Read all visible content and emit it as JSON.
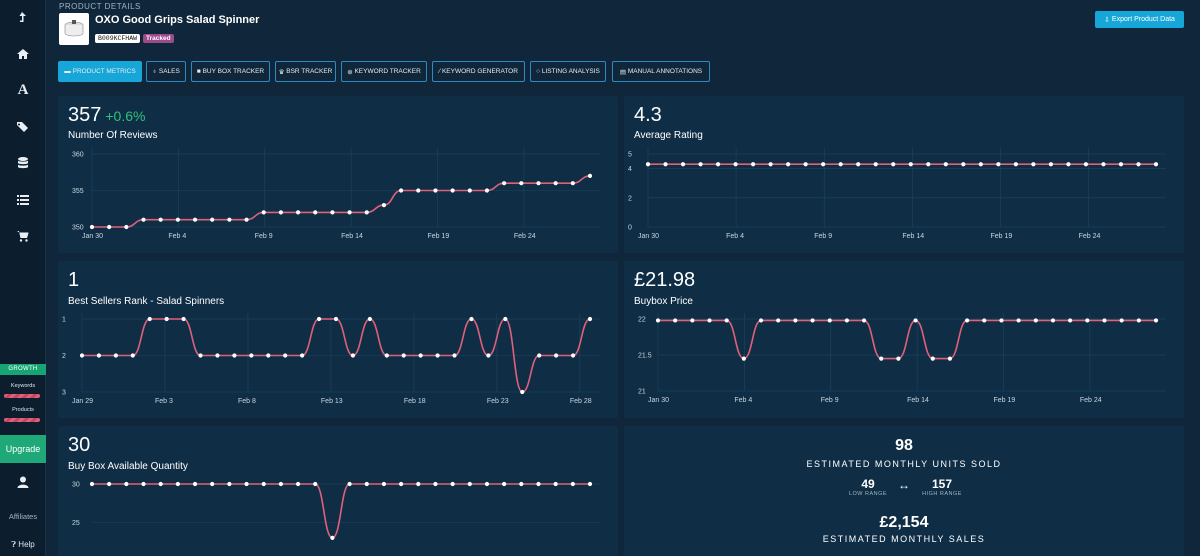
{
  "header": {
    "section_label": "PRODUCT DETAILS",
    "product_title": "OXO Good Grips Salad Spinner",
    "asin": "B009KCFHAW",
    "tracked_badge": "Tracked",
    "export_button": "Export Product Data"
  },
  "tabs": [
    {
      "label": "PRODUCT METRICS",
      "icon": "chart-area-icon",
      "active": true
    },
    {
      "label": "SALES",
      "icon": "money-bag-icon",
      "active": false
    },
    {
      "label": "BUY BOX TRACKER",
      "icon": "truck-icon",
      "active": false
    },
    {
      "label": "BSR TRACKER",
      "icon": "trophy-icon",
      "active": false
    },
    {
      "label": "KEYWORD TRACKER",
      "icon": "binoculars-icon",
      "active": false
    },
    {
      "label": "KEYWORD GENERATOR",
      "icon": "magic-wand-icon",
      "active": false
    },
    {
      "label": "LISTING ANALYSIS",
      "icon": "comment-icon",
      "active": false
    },
    {
      "label": "MANUAL ANNOTATIONS",
      "icon": "list-icon",
      "active": false
    }
  ],
  "sidebar": {
    "growth_label": "GROWTH",
    "keywords_label": "Keywords",
    "products_label": "Products",
    "upgrade_label": "Upgrade",
    "affiliates_label": "Affiliates",
    "help_label": "Help"
  },
  "panels": {
    "reviews": {
      "value": "357",
      "change": "+0.6%",
      "label": "Number Of Reviews"
    },
    "rating": {
      "value": "4.3",
      "label": "Average Rating"
    },
    "bsr": {
      "value": "1",
      "label": "Best Sellers Rank - Salad Spinners"
    },
    "buybox_price": {
      "value": "£21.98",
      "label": "Buybox Price"
    },
    "buybox_qty": {
      "value": "30",
      "label": "Buy Box Available Quantity"
    },
    "estimates": {
      "units_value": "98",
      "units_label": "ESTIMATED MONTHLY UNITS SOLD",
      "low_value": "49",
      "low_label": "LOW RANGE",
      "range_arrow": "↔",
      "high_value": "157",
      "high_label": "HIGH RANGE",
      "sales_value": "£2,154",
      "sales_label": "ESTIMATED MONTHLY SALES"
    }
  },
  "chart_data": [
    {
      "type": "line",
      "label": "Number Of Reviews",
      "x_ticks": [
        "Jan 30",
        "Feb 4",
        "Feb 9",
        "Feb 14",
        "Feb 19",
        "Feb 24"
      ],
      "y_ticks": [
        "360",
        "355",
        "350"
      ],
      "ylim": [
        350,
        360
      ],
      "line_color": "#e0607a",
      "values": [
        350,
        350,
        350,
        351,
        351,
        351,
        351,
        351,
        351,
        351,
        352,
        352,
        352,
        352,
        352,
        352,
        352,
        353,
        355,
        355,
        355,
        355,
        355,
        355,
        356,
        356,
        356,
        356,
        356,
        357
      ]
    },
    {
      "type": "line",
      "label": "Average Rating",
      "x_ticks": [
        "Jan 30",
        "Feb 4",
        "Feb 9",
        "Feb 14",
        "Feb 19",
        "Feb 24"
      ],
      "y_ticks": [
        "5",
        "4",
        "2",
        "0"
      ],
      "ylim": [
        0,
        5
      ],
      "line_color": "#e0607a",
      "values": [
        4.3,
        4.3,
        4.3,
        4.3,
        4.3,
        4.3,
        4.3,
        4.3,
        4.3,
        4.3,
        4.3,
        4.3,
        4.3,
        4.3,
        4.3,
        4.3,
        4.3,
        4.3,
        4.3,
        4.3,
        4.3,
        4.3,
        4.3,
        4.3,
        4.3,
        4.3,
        4.3,
        4.3,
        4.3,
        4.3
      ]
    },
    {
      "type": "line",
      "label": "Best Sellers Rank - Salad Spinners",
      "x_ticks": [
        "Jan 29",
        "Feb 3",
        "Feb 8",
        "Feb 13",
        "Feb 18",
        "Feb 23",
        "Feb 28"
      ],
      "y_ticks": [
        "1",
        "2",
        "3"
      ],
      "ylim": [
        1,
        3
      ],
      "inverted": true,
      "line_color": "#e0607a",
      "values": [
        2,
        2,
        2,
        2,
        1,
        1,
        1,
        2,
        2,
        2,
        2,
        2,
        2,
        2,
        1,
        1,
        2,
        1,
        2,
        2,
        2,
        2,
        2,
        1,
        2,
        1,
        3,
        2,
        2,
        2,
        1
      ]
    },
    {
      "type": "line",
      "label": "Buybox Price",
      "x_ticks": [
        "Jan 30",
        "Feb 4",
        "Feb 9",
        "Feb 14",
        "Feb 19",
        "Feb 24"
      ],
      "y_ticks": [
        "22",
        "21.5",
        "21"
      ],
      "ylim": [
        21,
        22
      ],
      "line_color": "#e0607a",
      "values": [
        21.98,
        21.98,
        21.98,
        21.98,
        21.98,
        21.45,
        21.98,
        21.98,
        21.98,
        21.98,
        21.98,
        21.98,
        21.98,
        21.45,
        21.45,
        21.98,
        21.45,
        21.45,
        21.98,
        21.98,
        21.98,
        21.98,
        21.98,
        21.98,
        21.98,
        21.98,
        21.98,
        21.98,
        21.98,
        21.98
      ]
    },
    {
      "type": "line",
      "label": "Buy Box Available Quantity",
      "y_ticks": [
        "30",
        "25"
      ],
      "ylim": [
        20,
        30
      ],
      "line_color": "#e0607a",
      "values": [
        30,
        30,
        30,
        30,
        30,
        30,
        30,
        30,
        30,
        30,
        30,
        30,
        30,
        30,
        23,
        30,
        30,
        30,
        30,
        30,
        30,
        30,
        30,
        30,
        30,
        30,
        30,
        30,
        30,
        30
      ]
    }
  ]
}
